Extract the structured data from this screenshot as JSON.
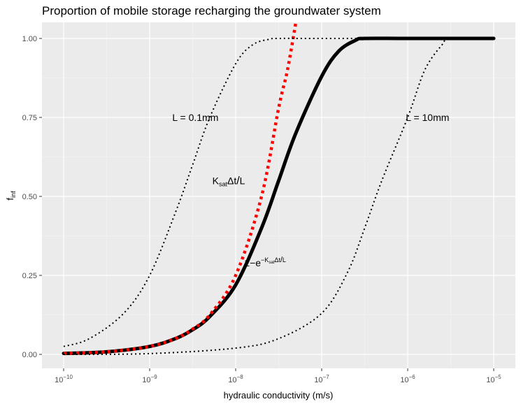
{
  "chart_data": {
    "type": "line",
    "title": "Proportion of mobile storage recharging the groundwater system",
    "xlabel": "hydraulic conductivity (m/s)",
    "ylabel": {
      "base": "f",
      "sub": "inf"
    },
    "x_scale": "log10",
    "xlim": [
      1e-10,
      1e-05
    ],
    "ylim": [
      0,
      1
    ],
    "x_ticks": [
      {
        "value": 1e-10,
        "base": "10",
        "exp": "−10"
      },
      {
        "value": 1e-09,
        "base": "10",
        "exp": "−9"
      },
      {
        "value": 1e-08,
        "base": "10",
        "exp": "−8"
      },
      {
        "value": 1e-07,
        "base": "10",
        "exp": "−7"
      },
      {
        "value": 1e-06,
        "base": "10",
        "exp": "−6"
      },
      {
        "value": 1e-05,
        "base": "10",
        "exp": "−5"
      }
    ],
    "y_ticks": [
      {
        "value": 0,
        "label": "0.00"
      },
      {
        "value": 0.25,
        "label": "0.25"
      },
      {
        "value": 0.5,
        "label": "0.50"
      },
      {
        "value": 0.75,
        "label": "0.75"
      },
      {
        "value": 1,
        "label": "1.00"
      }
    ],
    "grid": true,
    "legend": "none",
    "series": [
      {
        "style": "solid-thick",
        "color": "#000000",
        "x": [
          1e-10,
          3.16e-10,
          1e-09,
          2e-09,
          3.16e-09,
          5e-09,
          1e-08,
          2e-08,
          3.16e-08,
          5e-08,
          1e-07,
          1.58e-07,
          2.51e-07,
          3.16e-07,
          1e-06,
          1e-05
        ],
        "y": [
          0.003,
          0.008,
          0.025,
          0.05,
          0.078,
          0.12,
          0.22,
          0.4,
          0.55,
          0.7,
          0.88,
          0.96,
          0.995,
          1.0,
          1.0,
          1.0
        ]
      },
      {
        "style": "dotted-thick",
        "color": "#ff0000",
        "x": [
          1e-10,
          3.16e-10,
          1e-09,
          2e-09,
          3.16e-09,
          5e-09,
          1e-08,
          2e-08,
          3.16e-08,
          4e-08,
          5e-08
        ],
        "y": [
          0.003,
          0.008,
          0.025,
          0.05,
          0.08,
          0.125,
          0.25,
          0.5,
          0.78,
          0.9,
          1.05
        ]
      },
      {
        "style": "dotted-thin",
        "color": "#000000",
        "x": [
          1e-10,
          2e-10,
          5e-10,
          1e-09,
          2e-09,
          3.16e-09,
          5e-09,
          1e-08,
          1.58e-08,
          2.51e-08,
          3.16e-08,
          1e-07,
          1e-05
        ],
        "y": [
          0.025,
          0.05,
          0.13,
          0.25,
          0.45,
          0.6,
          0.75,
          0.92,
          0.98,
          0.998,
          1.0,
          1.0,
          1.0
        ]
      },
      {
        "style": "dotted-thin",
        "color": "#000000",
        "x": [
          1e-10,
          1e-09,
          1e-08,
          3.16e-08,
          1e-07,
          2e-07,
          3.16e-07,
          5e-07,
          1e-06,
          1.58e-06,
          2.51e-06,
          3.16e-06,
          1e-05
        ],
        "y": [
          0.0,
          0.0025,
          0.02,
          0.05,
          0.13,
          0.26,
          0.4,
          0.55,
          0.75,
          0.9,
          0.98,
          1.0,
          1.0
        ]
      }
    ],
    "annotations": [
      {
        "id": "l01",
        "text": "L = 0.1mm",
        "x": 3.4e-09,
        "y": 0.75,
        "color": "#000000"
      },
      {
        "id": "l10",
        "text": "L = 10mm",
        "x": 1.7e-06,
        "y": 0.75,
        "color": "#000000"
      },
      {
        "id": "red",
        "parts": [
          "K",
          "sat",
          "Δt",
          "/",
          "L"
        ],
        "x": 8.3e-09,
        "y": 0.55,
        "color": "#ff0000"
      },
      {
        "id": "black",
        "parts": [
          "1−e",
          "−K",
          "sat",
          "Δt",
          "/",
          "L"
        ],
        "x": 2.2e-08,
        "y": 0.29,
        "color": "#000000"
      }
    ]
  }
}
